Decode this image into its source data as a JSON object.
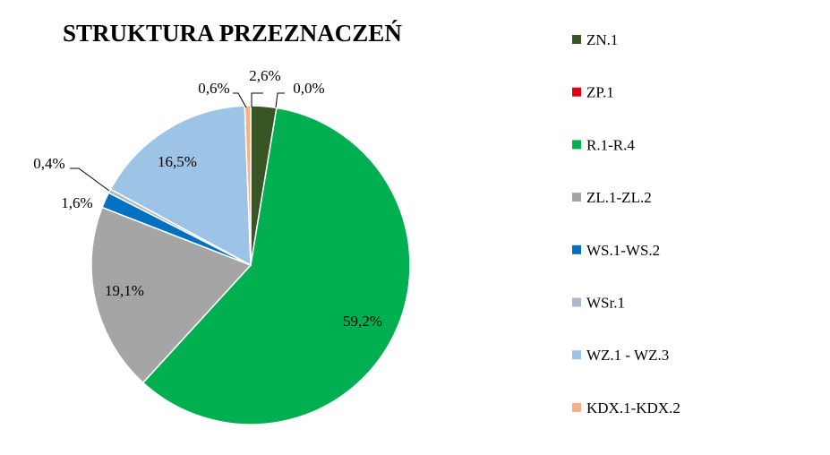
{
  "chart_data": {
    "type": "pie",
    "title": "STRUKTURA PRZEZNACZEŃ",
    "slices": [
      {
        "name": "ZN.1",
        "value": 2.6,
        "label": "2,6%",
        "color": "#375623"
      },
      {
        "name": "ZP.1",
        "value": 0.0,
        "label": "0,0%",
        "color": "#e3000f"
      },
      {
        "name": "R.1-R.4",
        "value": 59.2,
        "label": "59,2%",
        "color": "#00b050"
      },
      {
        "name": "ZL.1-ZL.2",
        "value": 19.1,
        "label": "19,1%",
        "color": "#a5a5a5"
      },
      {
        "name": "WS.1-WS.2",
        "value": 1.6,
        "label": "1,6%",
        "color": "#0070c0"
      },
      {
        "name": "WSr.1",
        "value": 0.4,
        "label": "0,4%",
        "color": "#adb9ca"
      },
      {
        "name": "WZ.1 - WZ.3",
        "value": 16.5,
        "label": "16,5%",
        "color": "#9dc3e6"
      },
      {
        "name": "KDX.1-KDX.2",
        "value": 0.6,
        "label": "0,6%",
        "color": "#f4b183"
      }
    ],
    "legend_position": "right",
    "start_angle": "top, clockwise"
  }
}
